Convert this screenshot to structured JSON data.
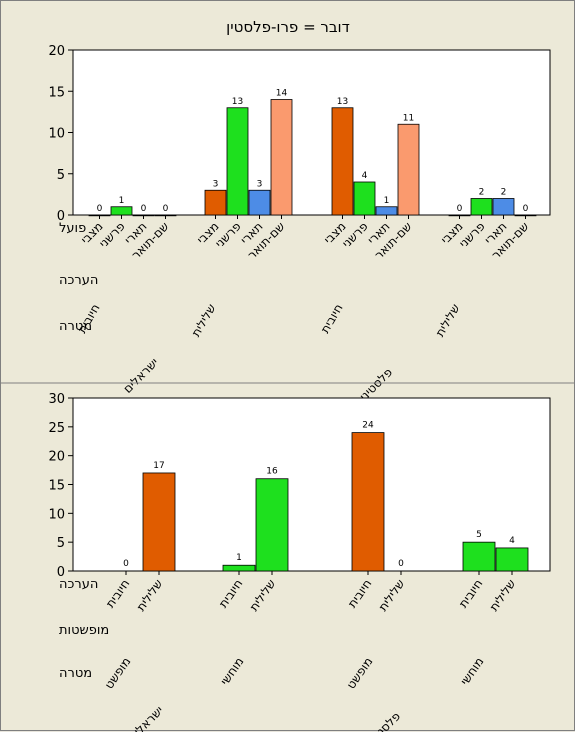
{
  "chart_data": [
    {
      "type": "bar",
      "title": "דובר = פרו-פלסטין",
      "ylim": [
        0,
        20
      ],
      "yticks": [
        0,
        5,
        10,
        15,
        20
      ],
      "row_labels": [
        "פועל",
        "הערכה",
        "מטרה"
      ],
      "verbs": [
        "מצבי",
        "פרשני",
        "תארי",
        "שם-תואר"
      ],
      "bar_colors": [
        "#e05c00",
        "#1ee01e",
        "#4d8ce6",
        "#fa9a6e"
      ],
      "groups": [
        {
          "target": "ישראלים",
          "evaluation": "חיובית",
          "values": [
            0,
            1,
            0,
            0
          ]
        },
        {
          "target": "ישראלים",
          "evaluation": "שלילית",
          "values": [
            3,
            13,
            3,
            14
          ]
        },
        {
          "target": "פלסטינים",
          "evaluation": "חיובית",
          "values": [
            13,
            4,
            1,
            11
          ]
        },
        {
          "target": "פלסטינים",
          "evaluation": "שלילית",
          "values": [
            0,
            2,
            2,
            0
          ]
        }
      ],
      "targets": [
        "ישראלים",
        "פלסטינים"
      ],
      "grid": false,
      "legend": "none"
    },
    {
      "type": "bar",
      "ylim": [
        0,
        30
      ],
      "yticks": [
        0,
        5,
        10,
        15,
        20,
        25,
        30
      ],
      "row_labels": [
        "הערכה",
        "מופשטות",
        "מטרה"
      ],
      "evaluations": [
        "חיובית",
        "שלילית"
      ],
      "groups": [
        {
          "target": "ישראלים",
          "abstraction": "מופשט",
          "values": [
            0,
            17
          ],
          "colors": [
            "#e05c00",
            "#e05c00"
          ]
        },
        {
          "target": "ישראלים",
          "abstraction": "מוחשי",
          "values": [
            1,
            16
          ],
          "colors": [
            "#1ee01e",
            "#1ee01e"
          ]
        },
        {
          "target": "פלסטינים",
          "abstraction": "מופשט",
          "values": [
            24,
            0
          ],
          "colors": [
            "#e05c00",
            "#e05c00"
          ]
        },
        {
          "target": "פלסטינים",
          "abstraction": "מוחשי",
          "values": [
            5,
            4
          ],
          "colors": [
            "#1ee01e",
            "#1ee01e"
          ]
        }
      ],
      "targets": [
        "ישראלים",
        "פלסטינים"
      ],
      "grid": false,
      "legend": "none"
    }
  ]
}
